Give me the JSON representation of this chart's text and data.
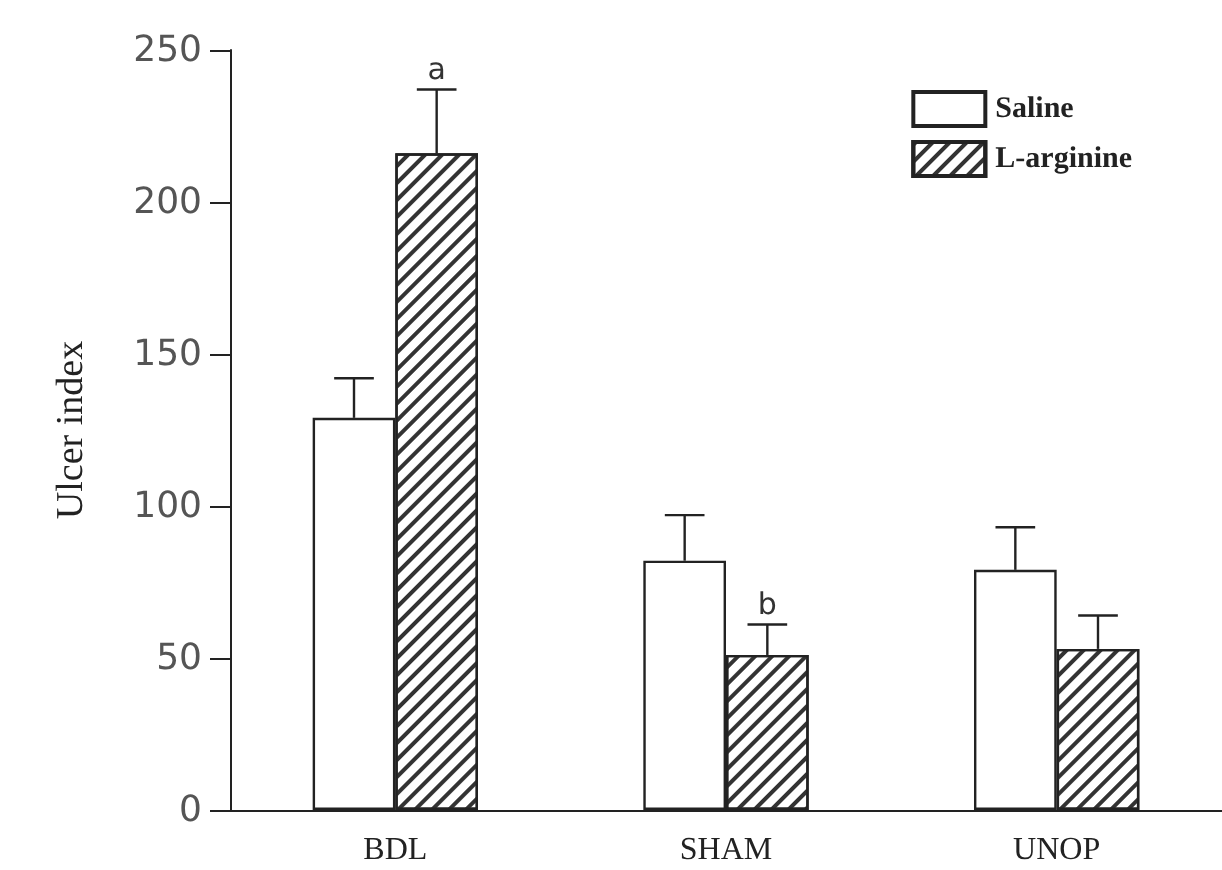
{
  "chart_data": {
    "type": "bar",
    "ylabel": "Ulcer index",
    "categories": [
      "BDL",
      "SHAM",
      "UNOP"
    ],
    "series": [
      {
        "name": "Saline",
        "color": "#ffffff",
        "values": [
          129,
          82,
          79
        ],
        "errors": [
          [
            129,
            142
          ],
          [
            82,
            97
          ],
          [
            79,
            93
          ]
        ]
      },
      {
        "name": "L-arginine",
        "color": "#ffffff",
        "values": [
          216,
          51,
          53
        ],
        "errors": [
          [
            216,
            237
          ],
          [
            51,
            61
          ],
          [
            53,
            64
          ]
        ]
      }
    ],
    "annotations": [
      {
        "text": "a",
        "x": "BDL",
        "y": 216
      },
      {
        "text": "b",
        "x": "SHAM",
        "y": 51
      }
    ],
    "ylim": [
      0,
      250
    ],
    "yticks": [
      0,
      50,
      100,
      150,
      200,
      250
    ],
    "grid": false,
    "legend": "top right"
  }
}
